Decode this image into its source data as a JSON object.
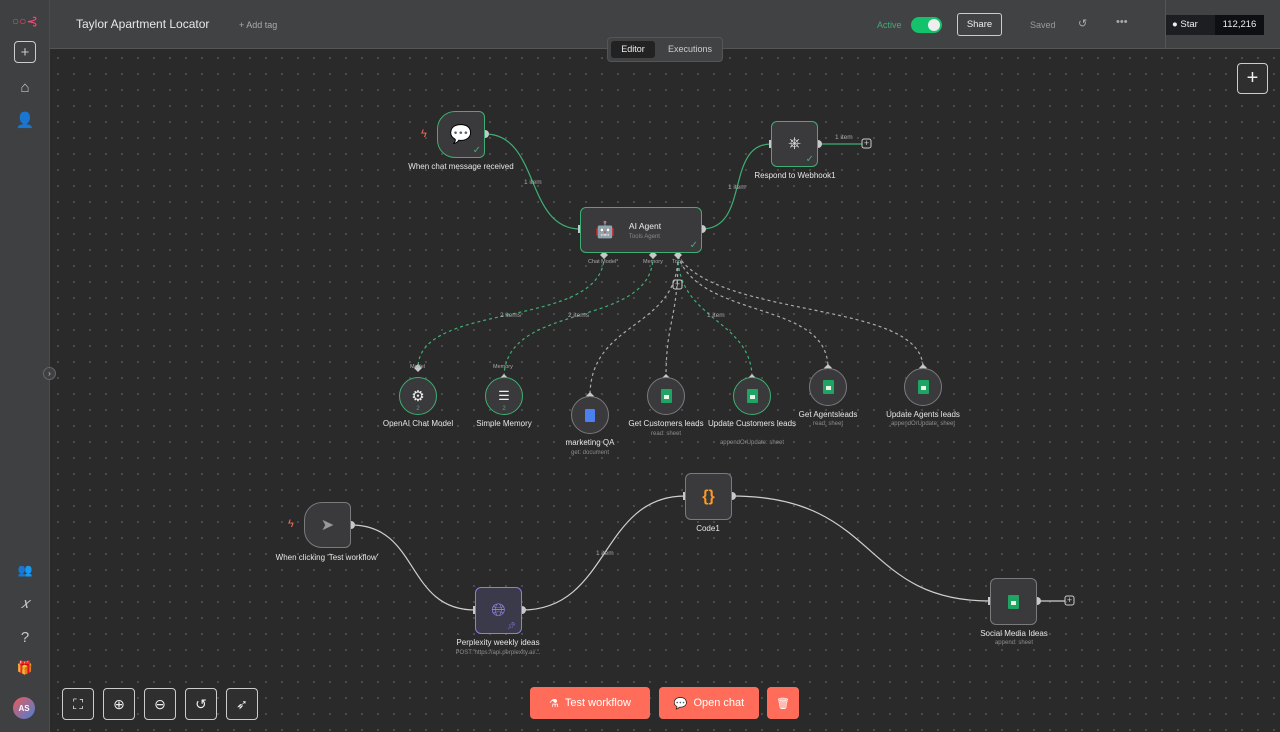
{
  "header": {
    "title": "Taylor Apartment Locator",
    "add_tag": "+ Add tag",
    "active_label": "Active",
    "active": true,
    "share": "Share",
    "saved": "Saved",
    "github_star": "Star",
    "github_count": "112,216"
  },
  "tabs": [
    {
      "label": "Editor",
      "active": true
    },
    {
      "label": "Executions",
      "active": false
    }
  ],
  "sidebar": {
    "avatar": "AS"
  },
  "nodes": {
    "chat_trigger": {
      "label": "When chat message received"
    },
    "agent": {
      "label": "AI Agent",
      "sub": "Tools Agent",
      "ports": [
        "Chat Model*",
        "Memory",
        "Tool"
      ]
    },
    "webhook": {
      "label": "Respond to Webhook1"
    },
    "openai": {
      "label": "OpenAI Chat Model",
      "port": "Model",
      "count": "2"
    },
    "memory": {
      "label": "Simple Memory",
      "port": "Memory",
      "count": "2"
    },
    "qa": {
      "label": "marketing QA",
      "sub": "get: document"
    },
    "getcust": {
      "label": "Get Customers leads",
      "sub": "read: sheet"
    },
    "updcust": {
      "label": "Update Customers leads",
      "sub": "appendOrUpdate: sheet"
    },
    "getag": {
      "label": "Get Agentsleads",
      "sub": "read: sheet"
    },
    "updag": {
      "label": "Update Agents leads",
      "sub": "appendOrUpdate: sheet"
    },
    "test_trigger": {
      "label": "When clicking 'Test workflow'"
    },
    "perplexity": {
      "label": "Perplexity weekly ideas",
      "sub": "POST: https://api.perplexity.ai/..."
    },
    "code": {
      "label": "Code1"
    },
    "social": {
      "label": "Social Media Ideas",
      "sub": "append: sheet"
    }
  },
  "edge_labels": {
    "e1": "1 item",
    "e2": "1 item",
    "e3": "1 item",
    "e4": "2 items",
    "e5": "2 items",
    "e6": "1 item",
    "e7": "1 item"
  },
  "footer": {
    "test": "Test workflow",
    "chat": "Open chat"
  },
  "colors": {
    "accent": "#ff6d5a",
    "success": "#3fae73",
    "active_toggle": "#13c26a"
  }
}
